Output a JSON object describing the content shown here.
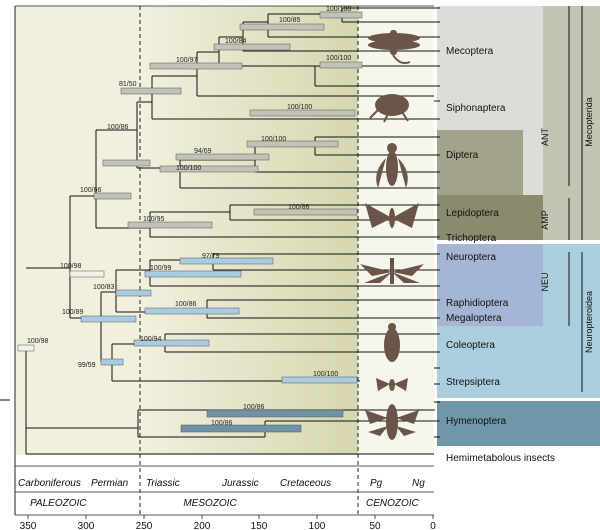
{
  "orders": [
    "Mecoptera",
    "Siphonaptera",
    "Diptera",
    "Lepidoptera",
    "Trichoptera",
    "Neuroptera",
    "Raphidioptera",
    "Megaloptera",
    "Coleoptera",
    "Strepsiptera",
    "Hymenoptera"
  ],
  "outgroup_label": "Hemimetabolous insects",
  "groups": {
    "ant": "ANT",
    "amp": "AMP",
    "neu": "NEU",
    "mecopterida": "Mecopterida",
    "neuropteroidea": "Neuropteroidea"
  },
  "support": {
    "n_root": "100/98",
    "n_holo": "100/98",
    "n_neu_col": "100/89",
    "n_col_str": "99/59",
    "n_neu_all": "100/83",
    "n_neu_rm": "100/99",
    "n_rm": "97/79",
    "n_meg": "100/86",
    "n_col": "100/94",
    "n_str": "100/100",
    "n_hym": "100/86",
    "n_hym2": "100/86",
    "n_mecopterida": "100/66",
    "n_amp_ant": "100/86",
    "n_amp": "100/95",
    "n_lep": "100/86",
    "n_dip": "94/69",
    "n_dip2": "100/100",
    "n_dip3": "100/100",
    "n_ant": "81/50",
    "n_mec": "100/97",
    "n_mec2": "100/84",
    "n_mec3": "100/85",
    "n_mec4": "100/100",
    "n_mec5": "100/100",
    "n_sip": "100/100"
  },
  "periods": [
    "Carboniferous",
    "Permian",
    "Triassic",
    "Jurassic",
    "Cretaceous",
    "Pg",
    "Ng"
  ],
  "eras": [
    "PALEOZOIC",
    "MESOZOIC",
    "CENOZOIC"
  ],
  "axis_ticks": [
    "350",
    "300",
    "250",
    "200",
    "150",
    "100",
    "50",
    "0"
  ],
  "colors": {
    "neu_box": "#a8c6d8",
    "neu_bar": "#a9cde0",
    "hym_bar": "#6d93a5",
    "mec_box": "#dcdcd8",
    "bar": "#c2c2b8"
  }
}
